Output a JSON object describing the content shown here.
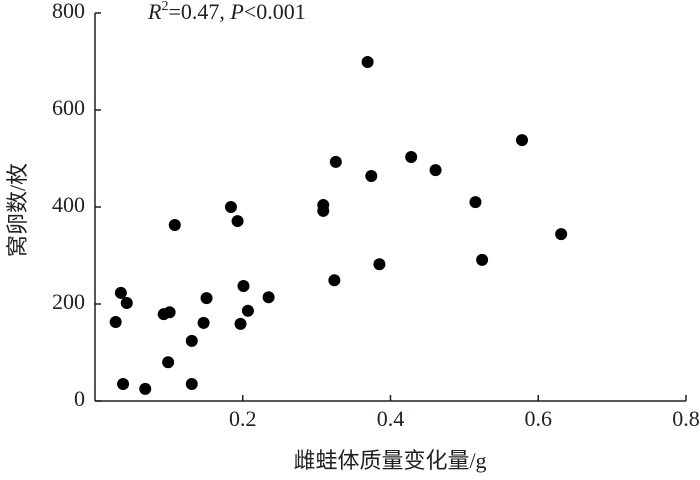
{
  "chart_data": {
    "type": "scatter",
    "annotation": [
      "R",
      "2",
      "=0.47, ",
      "P",
      "<0.001"
    ],
    "x_label": "雌蛙体质量变化量/g",
    "y_label": "窝卵数/枚",
    "color": "#000000",
    "xlim": [
      0,
      0.8
    ],
    "xticks": [
      0.2,
      0.4,
      0.6,
      0.8
    ],
    "ylim": [
      0,
      800
    ],
    "yticks": [
      0,
      200,
      400,
      600,
      800
    ],
    "grid": false,
    "x": [
      0.028,
      0.035,
      0.043,
      0.038,
      0.068,
      0.093,
      0.101,
      0.108,
      0.099,
      0.131,
      0.131,
      0.147,
      0.151,
      0.184,
      0.193,
      0.197,
      0.201,
      0.207,
      0.235,
      0.309,
      0.309,
      0.326,
      0.324,
      0.369,
      0.374,
      0.385,
      0.428,
      0.461,
      0.515,
      0.524,
      0.578,
      0.631
    ],
    "values": [
      163,
      223,
      202,
      35,
      25,
      179,
      183,
      363,
      80,
      124,
      35,
      161,
      212,
      400,
      371,
      159,
      237,
      186,
      214,
      404,
      392,
      493,
      249,
      699,
      464,
      282,
      503,
      476,
      410,
      291,
      538,
      344
    ]
  }
}
